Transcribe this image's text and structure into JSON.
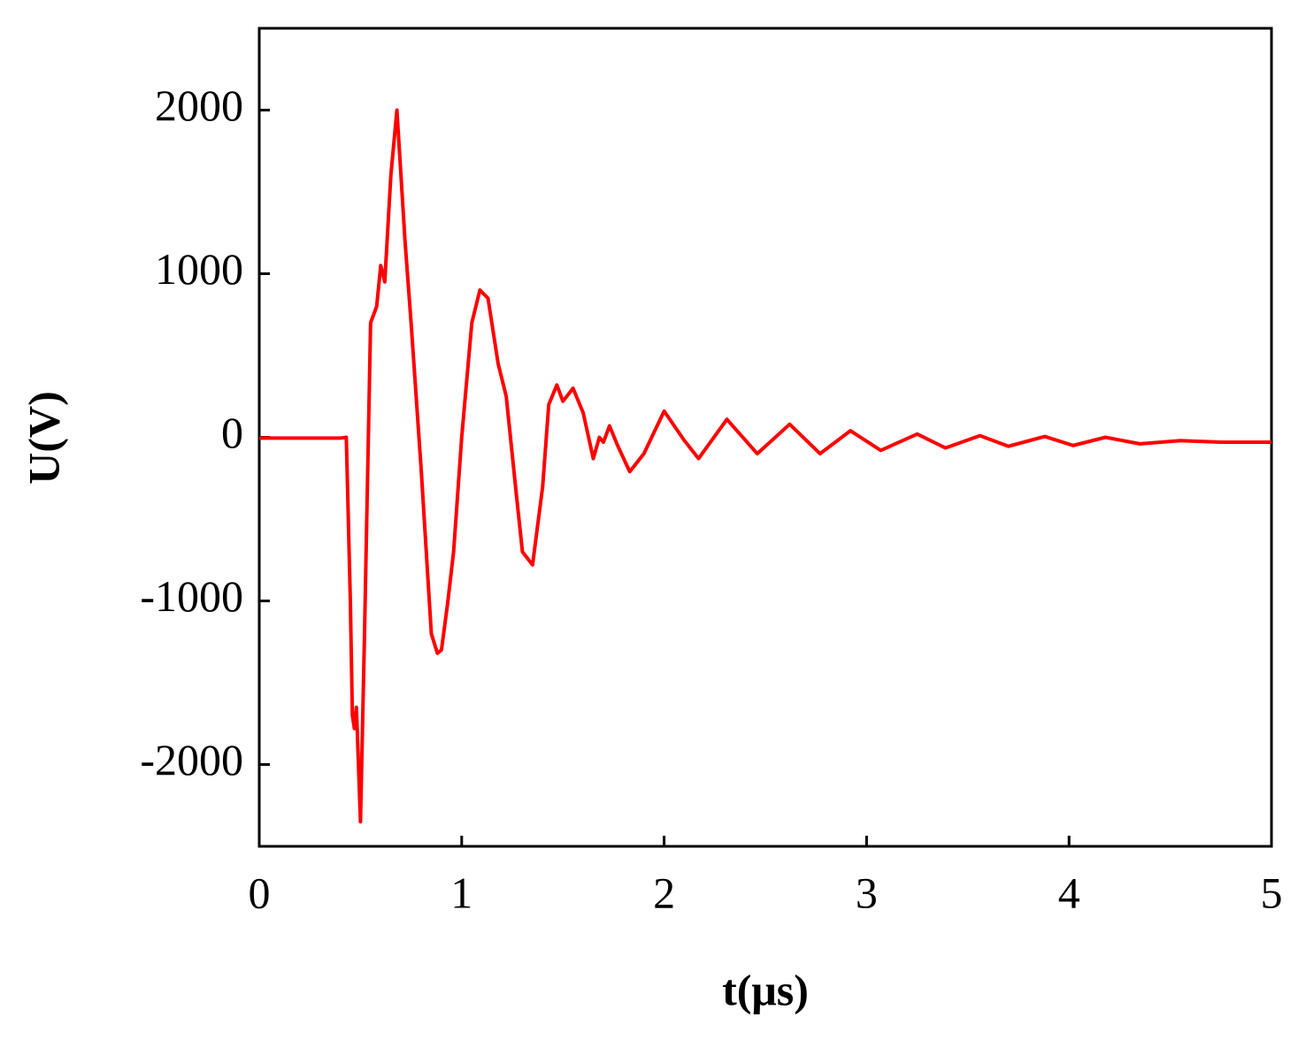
{
  "chart_data": {
    "type": "line",
    "x_label": "t(μs)",
    "y_label": "U(V)",
    "xlim": [
      0,
      5
    ],
    "xticks": [
      0,
      1,
      2,
      3,
      4,
      5
    ],
    "ylim": [
      -2500,
      2500
    ],
    "yticks": [
      -2000,
      -1000,
      0,
      1000,
      2000
    ],
    "grid": false,
    "series": [
      {
        "color": "#ff0000",
        "x": [
          0,
          0.4,
          0.43,
          0.45,
          0.46,
          0.47,
          0.48,
          0.5,
          0.52,
          0.55,
          0.58,
          0.6,
          0.62,
          0.65,
          0.68,
          0.72,
          0.75,
          0.8,
          0.85,
          0.88,
          0.9,
          0.93,
          0.96,
          1.0,
          1.05,
          1.09,
          1.13,
          1.18,
          1.22,
          1.27,
          1.3,
          1.35,
          1.4,
          1.43,
          1.47,
          1.5,
          1.55,
          1.6,
          1.65,
          1.68,
          1.7,
          1.73,
          1.77,
          1.83,
          1.9,
          2.0,
          2.1,
          2.17,
          2.31,
          2.46,
          2.62,
          2.77,
          2.92,
          3.07,
          3.25,
          3.39,
          3.56,
          3.7,
          3.88,
          4.02,
          4.18,
          4.35,
          4.55,
          4.75,
          5.0
        ],
        "values": [
          -5,
          -5,
          0,
          -1000,
          -1700,
          -1780,
          -1650,
          -2350,
          -1200,
          700,
          800,
          1050,
          950,
          1600,
          2000,
          1200,
          700,
          -200,
          -1200,
          -1320,
          -1300,
          -1020,
          -700,
          0,
          700,
          900,
          850,
          450,
          250,
          -350,
          -700,
          -780,
          -300,
          200,
          320,
          220,
          300,
          150,
          -130,
          0,
          -30,
          70,
          -50,
          -210,
          -100,
          160,
          -20,
          -130,
          110,
          -100,
          80,
          -100,
          40,
          -80,
          20,
          -65,
          10,
          -55,
          5,
          -50,
          0,
          -40,
          -20,
          -30,
          -30
        ]
      }
    ]
  }
}
